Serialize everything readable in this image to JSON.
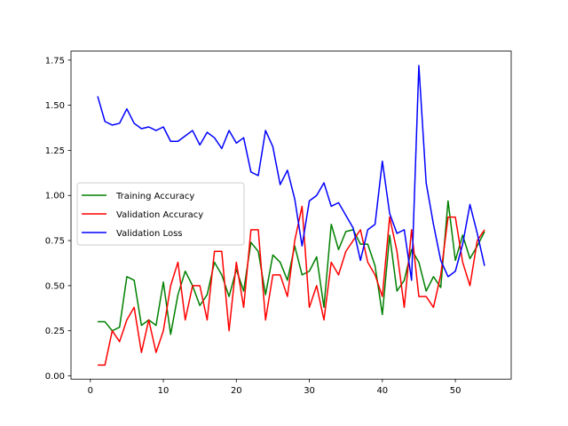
{
  "chart_data": {
    "type": "line",
    "title": "",
    "xlabel": "",
    "ylabel": "",
    "xlim": [
      -2.65,
      57.65
    ],
    "ylim": [
      -0.018,
      1.8
    ],
    "grid": false,
    "legend_position": "center-left",
    "x_ticks": [
      {
        "value": 0,
        "label": "0"
      },
      {
        "value": 10,
        "label": "10"
      },
      {
        "value": 20,
        "label": "20"
      },
      {
        "value": 30,
        "label": "30"
      },
      {
        "value": 40,
        "label": "40"
      },
      {
        "value": 50,
        "label": "50"
      }
    ],
    "y_ticks": [
      {
        "value": 0.0,
        "label": "0.00"
      },
      {
        "value": 0.25,
        "label": "0.25"
      },
      {
        "value": 0.5,
        "label": "0.50"
      },
      {
        "value": 0.75,
        "label": "0.75"
      },
      {
        "value": 1.0,
        "label": "1.00"
      },
      {
        "value": 1.25,
        "label": "1.25"
      },
      {
        "value": 1.5,
        "label": "1.50"
      },
      {
        "value": 1.75,
        "label": "1.75"
      }
    ],
    "x": [
      1,
      2,
      3,
      4,
      5,
      6,
      7,
      8,
      9,
      10,
      11,
      12,
      13,
      14,
      15,
      16,
      17,
      18,
      19,
      20,
      21,
      22,
      23,
      24,
      25,
      26,
      27,
      28,
      29,
      30,
      31,
      32,
      33,
      34,
      35,
      36,
      37,
      38,
      39,
      40,
      41,
      42,
      43,
      44,
      45,
      46,
      47,
      48,
      49,
      50,
      51,
      52,
      53,
      54
    ],
    "series": [
      {
        "name": "Training Accuracy",
        "color": "#008000",
        "values": [
          0.3,
          0.3,
          0.25,
          0.27,
          0.55,
          0.53,
          0.28,
          0.31,
          0.28,
          0.52,
          0.23,
          0.45,
          0.58,
          0.5,
          0.39,
          0.45,
          0.63,
          0.56,
          0.44,
          0.59,
          0.47,
          0.74,
          0.69,
          0.45,
          0.67,
          0.63,
          0.53,
          0.72,
          0.56,
          0.58,
          0.66,
          0.38,
          0.84,
          0.7,
          0.8,
          0.81,
          0.73,
          0.73,
          0.61,
          0.34,
          0.78,
          0.47,
          0.53,
          0.7,
          0.63,
          0.47,
          0.55,
          0.49,
          0.97,
          0.64,
          0.78,
          0.65,
          0.72,
          0.8
        ]
      },
      {
        "name": "Validation Accuracy",
        "color": "#ff0000",
        "values": [
          0.06,
          0.06,
          0.25,
          0.19,
          0.31,
          0.38,
          0.13,
          0.31,
          0.13,
          0.25,
          0.5,
          0.63,
          0.31,
          0.5,
          0.5,
          0.31,
          0.69,
          0.69,
          0.25,
          0.63,
          0.38,
          0.81,
          0.81,
          0.31,
          0.56,
          0.56,
          0.44,
          0.75,
          0.94,
          0.38,
          0.5,
          0.31,
          0.63,
          0.56,
          0.69,
          0.75,
          0.81,
          0.63,
          0.56,
          0.44,
          0.88,
          0.69,
          0.38,
          0.81,
          0.44,
          0.44,
          0.38,
          0.56,
          0.88,
          0.88,
          0.63,
          0.5,
          0.75,
          0.81
        ]
      },
      {
        "name": "Validation Loss",
        "color": "#0000ff",
        "values": [
          1.55,
          1.41,
          1.39,
          1.4,
          1.48,
          1.4,
          1.37,
          1.38,
          1.36,
          1.38,
          1.3,
          1.3,
          1.33,
          1.36,
          1.28,
          1.35,
          1.32,
          1.26,
          1.36,
          1.29,
          1.32,
          1.13,
          1.11,
          1.36,
          1.27,
          1.06,
          1.14,
          0.98,
          0.72,
          0.97,
          1.0,
          1.07,
          0.94,
          0.96,
          0.89,
          0.82,
          0.64,
          0.81,
          0.84,
          1.19,
          0.9,
          0.79,
          0.81,
          0.53,
          1.72,
          1.07,
          0.84,
          0.64,
          0.55,
          0.58,
          0.73,
          0.95,
          0.79,
          0.61
        ]
      }
    ]
  }
}
